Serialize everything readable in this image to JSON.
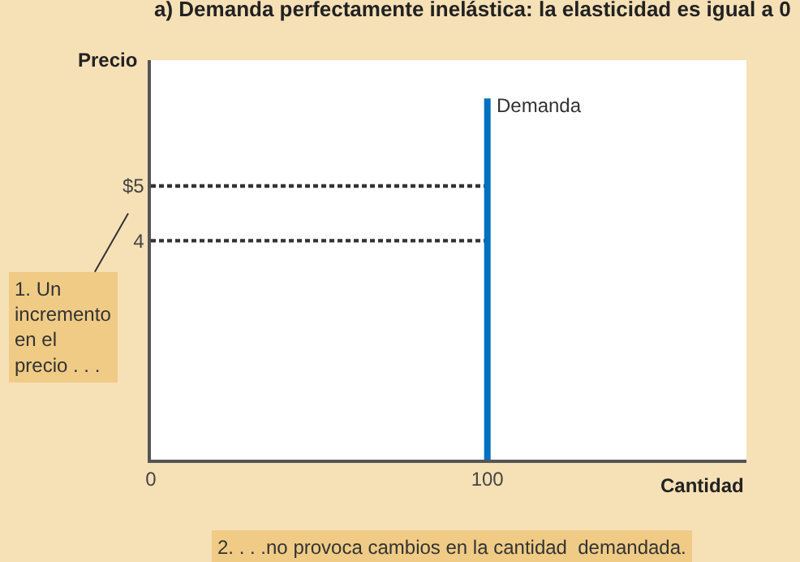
{
  "chart_data": {
    "type": "line",
    "title": "a) Demanda perfectamente inelástica: la elasticidad es igual a 0",
    "xlabel": "Cantidad",
    "ylabel": "Precio",
    "series": [
      {
        "name": "Demanda",
        "color": "#0070c0",
        "x": [
          100,
          100
        ],
        "values": [
          0,
          6.6
        ]
      }
    ],
    "ref_lines": [
      {
        "axis": "y",
        "value": 5,
        "color": "#333333",
        "line_style": "dotted"
      },
      {
        "axis": "y",
        "value": 4,
        "color": "#333333",
        "line_style": "dotted"
      }
    ],
    "xlim": [
      0,
      177
    ],
    "xticks": [
      0,
      100
    ],
    "ylim": [
      0,
      7.3
    ],
    "yticks": [
      4,
      {
        "value": 5,
        "label": "$5"
      }
    ],
    "annotations": [
      "1. Un\nincremento\nen el\nprecio . . .",
      "2. . . .no provoca cambios en la cantidad  demandada."
    ],
    "grid": false,
    "legend": false,
    "marker": "none"
  }
}
